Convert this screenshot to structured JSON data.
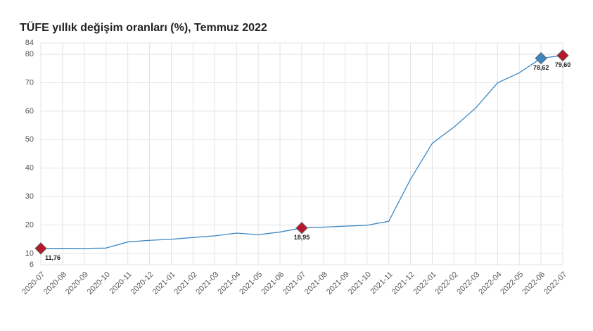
{
  "chart_data": {
    "type": "line",
    "title": "TÜFE yıllık değişim oranları (%), Temmuz 2022",
    "categories": [
      "2020-07",
      "2020-08",
      "2020-09",
      "2020-10",
      "2020-11",
      "2020-12",
      "2021-01",
      "2021-02",
      "2021-03",
      "2021-04",
      "2021-05",
      "2021-06",
      "2021-07",
      "2021-08",
      "2021-09",
      "2021-10",
      "2021-11",
      "2021-12",
      "2022-01",
      "2022-02",
      "2022-03",
      "2022-04",
      "2022-05",
      "2022-06",
      "2022-07"
    ],
    "series": [
      {
        "color": "#3a87c5",
        "values": [
          11.76,
          11.77,
          11.75,
          11.89,
          14.03,
          14.6,
          14.97,
          15.61,
          16.19,
          17.14,
          16.59,
          17.53,
          18.95,
          19.25,
          19.58,
          19.89,
          21.31,
          36.08,
          48.69,
          54.44,
          61.14,
          69.97,
          73.5,
          78.62,
          79.6
        ],
        "value_labels": [
          "11,76",
          null,
          null,
          null,
          null,
          null,
          null,
          null,
          null,
          null,
          null,
          null,
          "18,95",
          null,
          null,
          null,
          null,
          null,
          null,
          null,
          null,
          null,
          null,
          "78,62",
          "79,60"
        ],
        "marker_colors": [
          "#b5182b",
          null,
          null,
          null,
          null,
          null,
          null,
          null,
          null,
          null,
          null,
          null,
          "#b5182b",
          null,
          null,
          null,
          null,
          null,
          null,
          null,
          null,
          null,
          null,
          "#3a87c5",
          "#b5182b"
        ]
      }
    ],
    "ylim": [
      6,
      84
    ],
    "yticks": [
      6,
      10,
      20,
      30,
      40,
      50,
      60,
      70,
      80,
      84
    ],
    "grid": true
  }
}
